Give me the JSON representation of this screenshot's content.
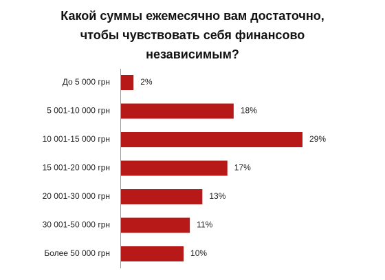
{
  "chart_data": {
    "type": "bar",
    "orientation": "horizontal",
    "title": [
      "Какой суммы ежемесячно вам достаточно,",
      "чтобы чувствовать себя финансово",
      "независимым?"
    ],
    "categories": [
      "До 5 000 грн",
      "5 001-10 000 грн",
      "10 001-15 000 грн",
      "15 001-20 000 грн",
      "20 001-30 000 грн",
      "30 001-50 000 грн",
      "Более 50 000 грн"
    ],
    "values": [
      2,
      18,
      29,
      17,
      13,
      11,
      10
    ],
    "value_labels": [
      "2%",
      "18%",
      "29%",
      "17%",
      "13%",
      "11%",
      "10%"
    ],
    "color": "#b71918"
  }
}
